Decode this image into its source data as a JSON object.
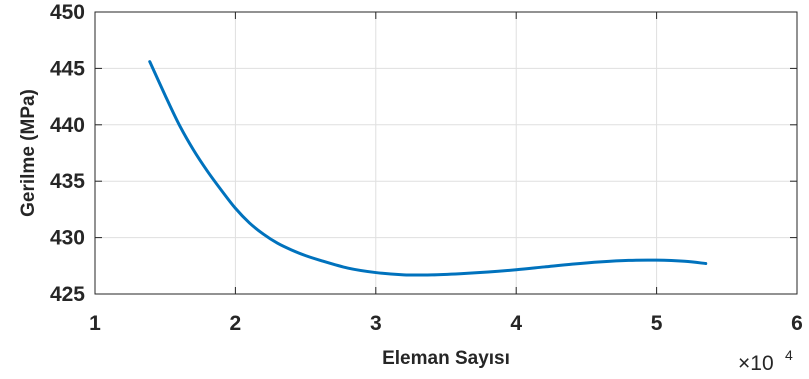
{
  "chart_data": {
    "type": "line",
    "xlabel": "Eleman Sayısı",
    "ylabel": "Gerilme (MPa)",
    "x_exponent_base": "×10",
    "x_exponent_power": "4",
    "xlim": [
      1,
      6
    ],
    "ylim": [
      425,
      450
    ],
    "x_ticks": [
      1,
      2,
      3,
      4,
      5,
      6
    ],
    "x_tick_labels": [
      "1",
      "2",
      "3",
      "4",
      "5",
      "6"
    ],
    "y_ticks": [
      425,
      430,
      435,
      440,
      445,
      450
    ],
    "y_tick_labels": [
      "425",
      "430",
      "435",
      "440",
      "445",
      "450"
    ],
    "grid": true,
    "series": [
      {
        "color": "#0072BD",
        "x": [
          1.39,
          1.5,
          1.6,
          1.7,
          1.8,
          1.9,
          2.0,
          2.1,
          2.2,
          2.3,
          2.4,
          2.5,
          2.6,
          2.8,
          3.0,
          3.2,
          3.4,
          3.6,
          3.8,
          4.0,
          4.2,
          4.4,
          4.6,
          4.8,
          5.0,
          5.2,
          5.35
        ],
        "y": [
          445.6,
          442.6,
          440.0,
          437.8,
          435.9,
          434.2,
          432.6,
          431.3,
          430.3,
          429.5,
          428.9,
          428.4,
          428.0,
          427.3,
          426.9,
          426.7,
          426.7,
          426.8,
          426.95,
          427.15,
          427.4,
          427.65,
          427.85,
          427.98,
          428.0,
          427.9,
          427.7
        ]
      }
    ]
  }
}
